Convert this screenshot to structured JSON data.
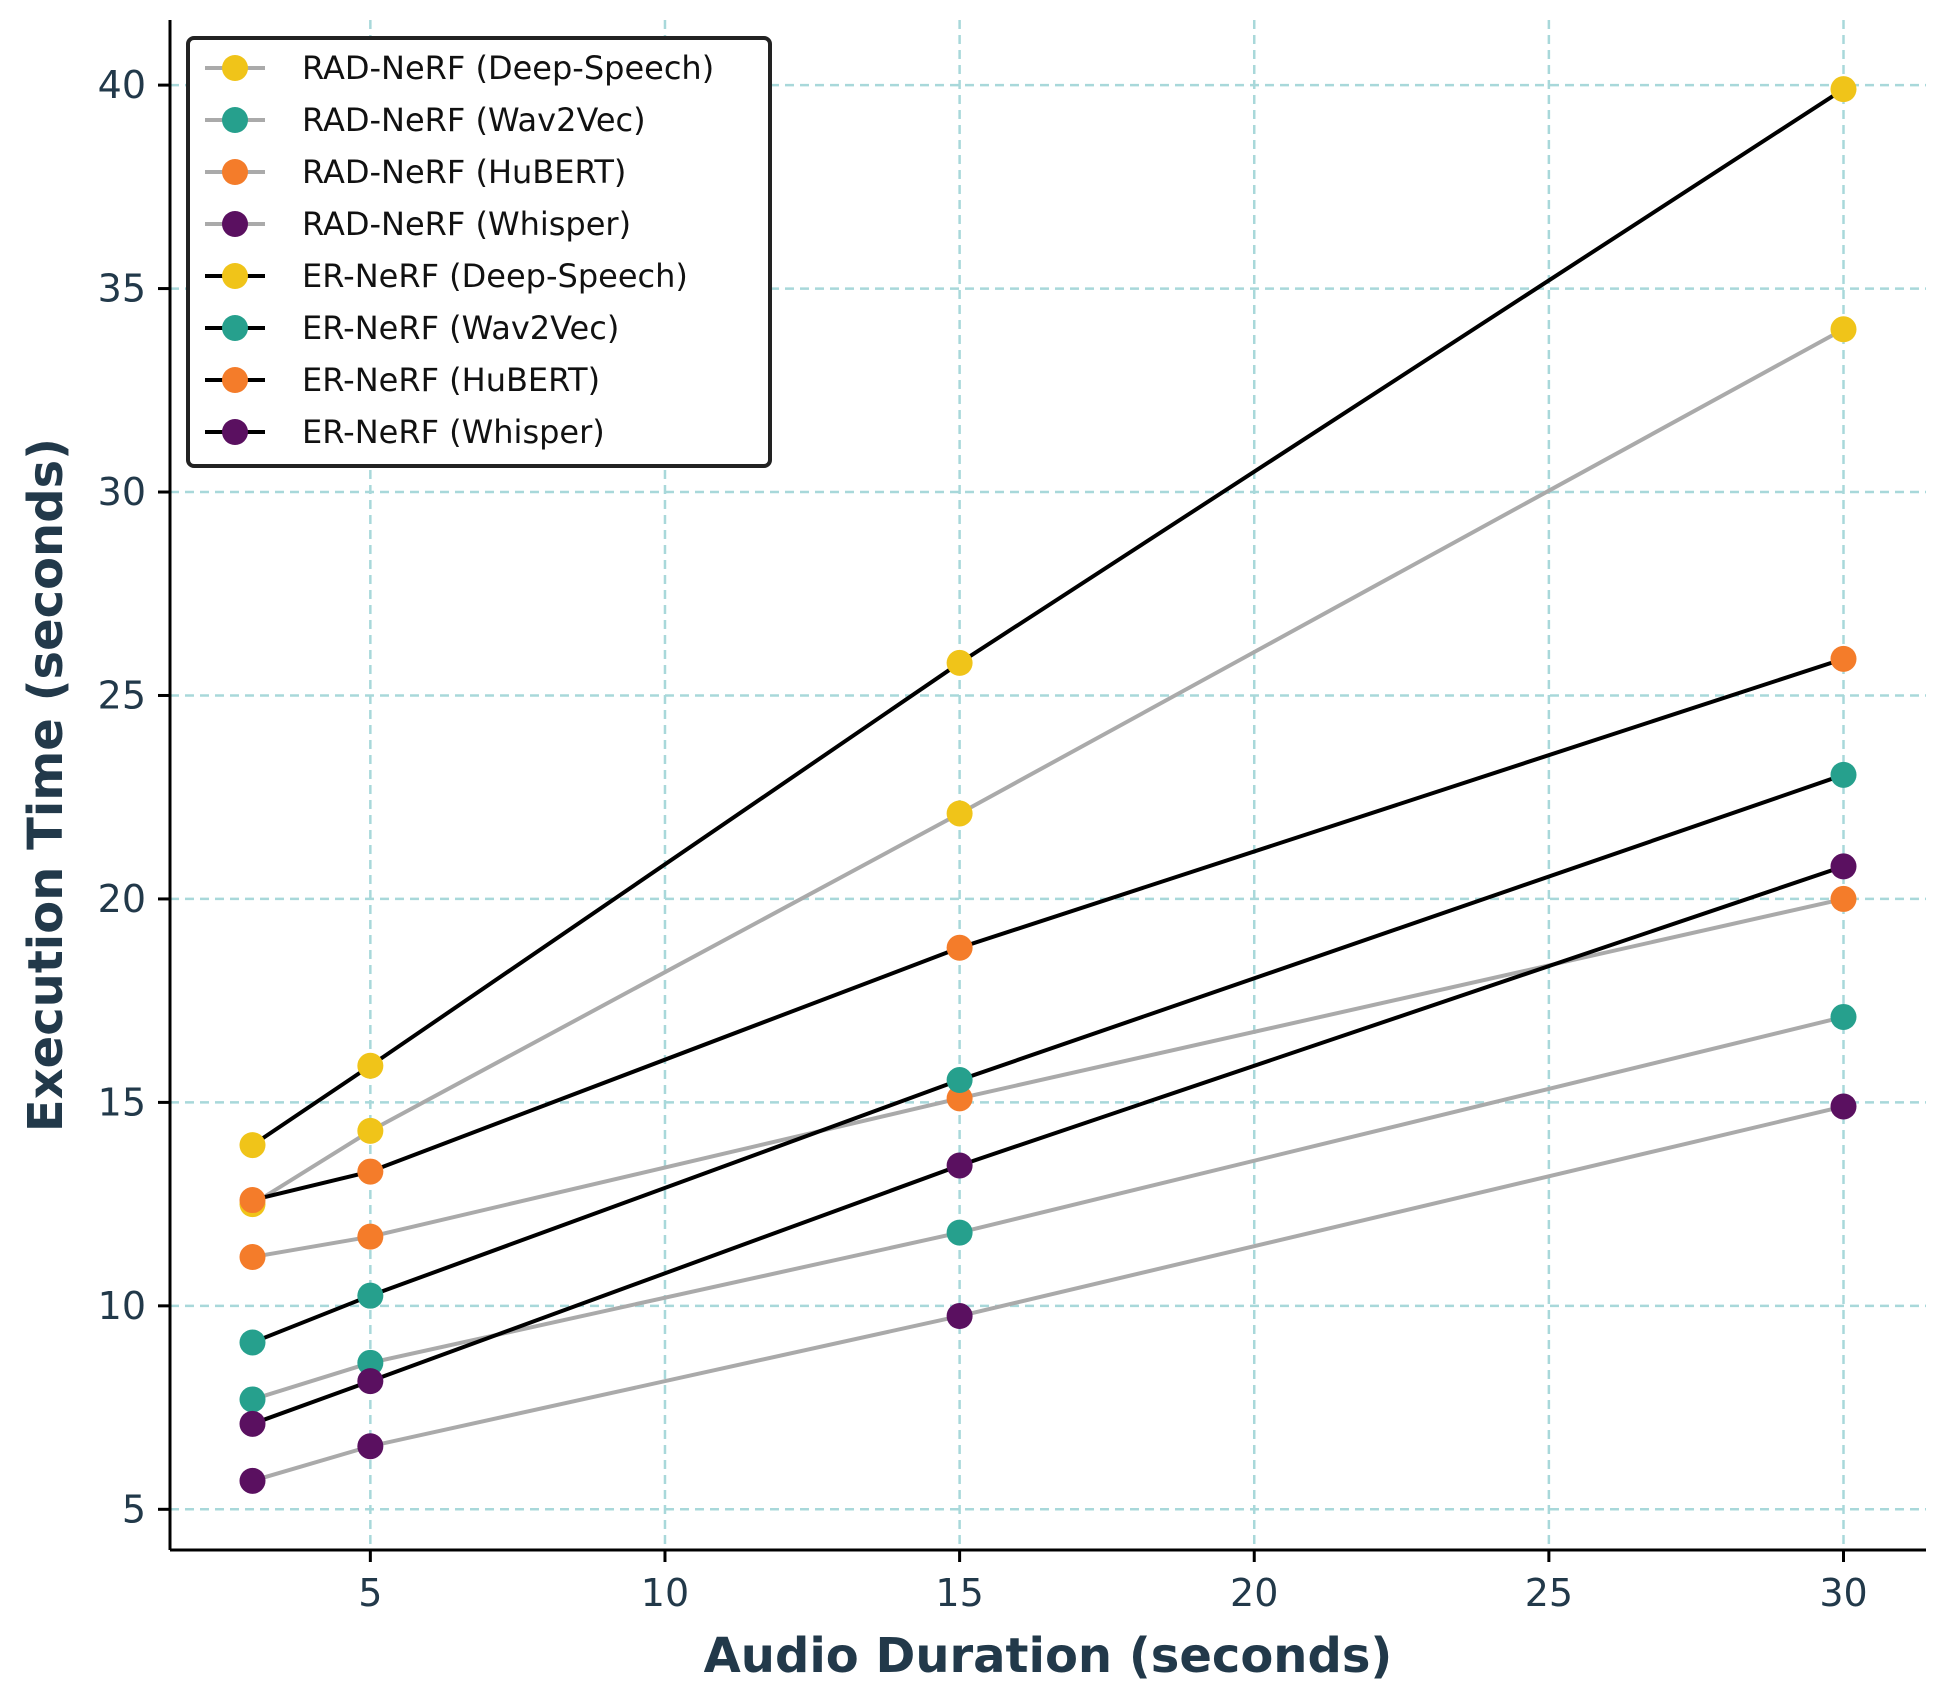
{
  "chart_data": {
    "type": "line",
    "title": "",
    "xlabel": "Audio Duration (seconds)",
    "ylabel": "Execution Time (seconds)",
    "x": [
      3,
      5,
      15,
      30
    ],
    "xlim": [
      1.6,
      31.4
    ],
    "ylim": [
      4,
      41.6
    ],
    "xticks": [
      5,
      10,
      15,
      20,
      25,
      30
    ],
    "yticks": [
      5,
      10,
      15,
      20,
      25,
      30,
      35,
      40
    ],
    "grid": true,
    "legend_position": "top-left",
    "series": [
      {
        "name": "RAD-NeRF (Deep-Speech)",
        "values": [
          12.5,
          14.3,
          22.1,
          34.0
        ],
        "line_color": "#aaaaaa",
        "marker_color": "#f0c419"
      },
      {
        "name": "RAD-NeRF (Wav2Vec)",
        "values": [
          7.7,
          8.6,
          11.8,
          17.1
        ],
        "line_color": "#aaaaaa",
        "marker_color": "#26a08d"
      },
      {
        "name": "RAD-NeRF (HuBERT)",
        "values": [
          11.2,
          11.7,
          15.1,
          20.0
        ],
        "line_color": "#aaaaaa",
        "marker_color": "#f47c2a"
      },
      {
        "name": "RAD-NeRF (Whisper)",
        "values": [
          5.7,
          6.55,
          9.75,
          14.9
        ],
        "line_color": "#aaaaaa",
        "marker_color": "#5a1060"
      },
      {
        "name": "ER-NeRF (Deep-Speech)",
        "values": [
          13.95,
          15.9,
          25.8,
          39.9
        ],
        "line_color": "#000000",
        "marker_color": "#f0c419"
      },
      {
        "name": "ER-NeRF (Wav2Vec)",
        "values": [
          9.1,
          10.25,
          15.55,
          23.05
        ],
        "line_color": "#000000",
        "marker_color": "#26a08d"
      },
      {
        "name": "ER-NeRF (HuBERT)",
        "values": [
          12.6,
          13.3,
          18.8,
          25.9
        ],
        "line_color": "#000000",
        "marker_color": "#f47c2a"
      },
      {
        "name": "ER-NeRF (Whisper)",
        "values": [
          7.1,
          8.15,
          13.45,
          20.8
        ],
        "line_color": "#000000",
        "marker_color": "#5a1060"
      }
    ]
  }
}
